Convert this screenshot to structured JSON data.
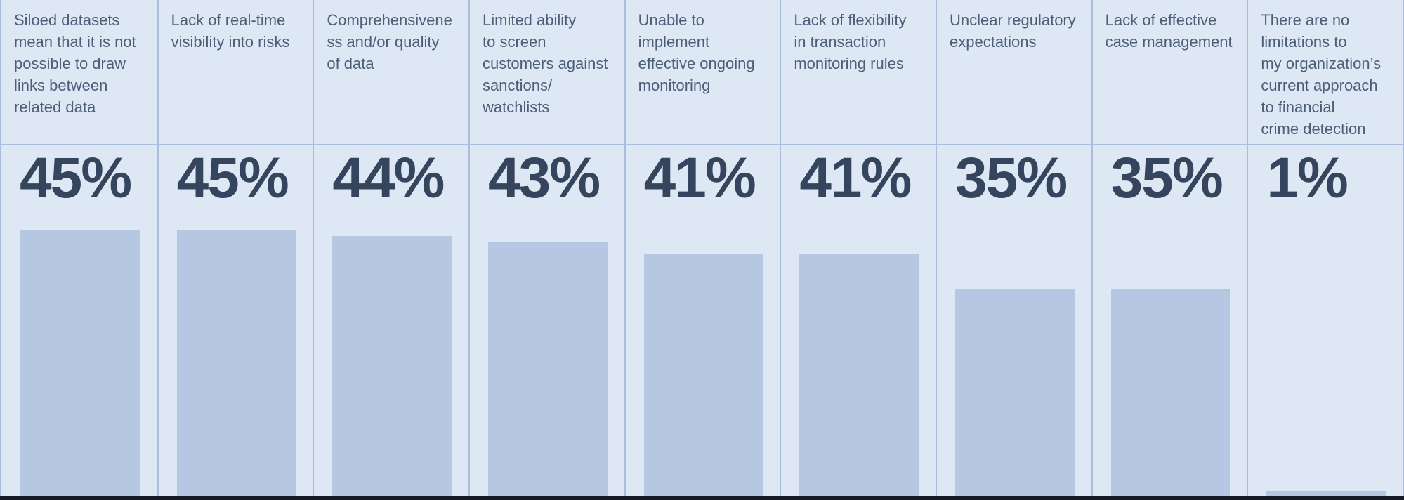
{
  "chart_data": {
    "type": "bar",
    "orientation": "vertical",
    "categories": [
      "Siloed datasets mean that it is not possible to draw links between related data",
      "Lack of real-time visibility into risks",
      "Comprehensiveness and/or quality of data",
      "Limited ability to screen customers against sanctions/watchlists",
      "Unable to implement effective ongoing monitoring",
      "Lack of flexibility in transaction monitoring rules",
      "Unclear regulatory expectations",
      "Lack of effective case management",
      "There are no limitations to my organization’s current approach to financial crime detection"
    ],
    "values": [
      45,
      45,
      44,
      43,
      41,
      41,
      35,
      35,
      1
    ],
    "value_labels": [
      "45%",
      "45%",
      "44%",
      "43%",
      "41%",
      "41%",
      "35%",
      "35%",
      "1%"
    ],
    "ylim": [
      0,
      45
    ],
    "grid": false,
    "legend": false,
    "value_label_position": "above-bar"
  },
  "display": {
    "label_lines": [
      "Siloed datasets\nmean that it is not\npossible to draw\nlinks between\nrelated data",
      "Lack of real-time\nvisibility into risks",
      "Comprehensivene\nss and/or quality\nof data",
      "Limited ability\nto screen\ncustomers against\nsanctions/\nwatchlists",
      "Unable to\nimplement\neffective ongoing\nmonitoring",
      "Lack of flexibility\nin transaction\nmonitoring rules",
      "Unclear regulatory\nexpectations",
      "Lack of effective\ncase management",
      "There are no\nlimitations to\nmy organization’s\ncurrent approach\nto financial\ncrime detection"
    ]
  },
  "colors": {
    "background": "#dee8f5",
    "bar": "#b5c7e1",
    "divider": "#a9bedd",
    "baseline": "#131a25",
    "label_text": "#4d5e78",
    "value_text": "#36455e"
  }
}
